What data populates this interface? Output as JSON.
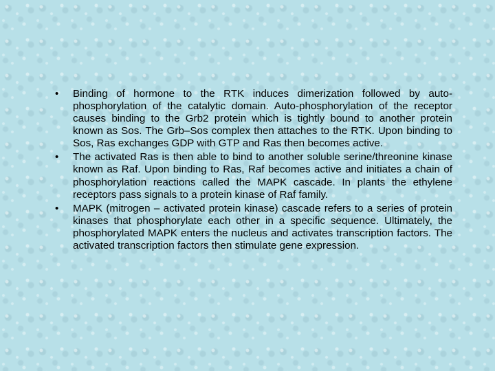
{
  "background_color": "#b8e0e8",
  "text_color": "#000000",
  "font_family": "Arial",
  "font_size_pt": 11,
  "bullets": [
    {
      "text": "Binding of hormone to the RTK induces dimerization followed by auto-phosphorylation of the catalytic domain. Auto-phosphorylation of the receptor causes binding to the Grb2 protein which is tightly bound to another protein known as Sos. The Grb–Sos complex then attaches to the RTK. Upon binding to Sos, Ras exchanges GDP with GTP and Ras then becomes active."
    },
    {
      "text": "The activated Ras is then able to bind to another soluble serine/threonine kinase known as Raf. Upon binding to Ras, Raf becomes active and initiates a chain of phosphorylation reactions called the MAPK cascade. In plants the ethylene receptors pass signals to a protein kinase of Raf family."
    },
    {
      "text": "MAPK (mitrogen – activated protein kinase) cascade refers to a series of protein kinases that phosphorylate each other in a specific sequence. Ultimately, the phosphorylated MAPK enters the nucleus and activates transcription factors. The activated transcription factors then stimulate gene expression."
    }
  ]
}
